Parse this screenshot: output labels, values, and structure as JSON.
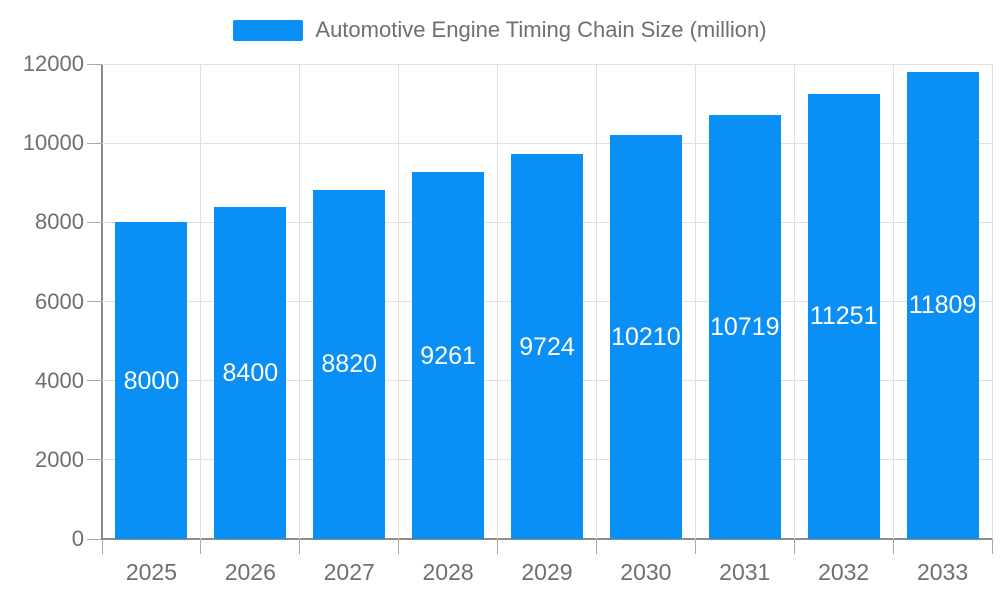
{
  "legend": {
    "label": "Automotive Engine Timing Chain Size (million)"
  },
  "chart_data": {
    "type": "bar",
    "title": "",
    "series_name": "Automotive Engine Timing Chain Size (million)",
    "categories": [
      "2025",
      "2026",
      "2027",
      "2028",
      "2029",
      "2030",
      "2031",
      "2032",
      "2033"
    ],
    "values": [
      8000,
      8400,
      8820,
      9261,
      9724,
      10210,
      10719,
      11251,
      11809
    ],
    "bar_value_labels_visible": true,
    "xlabel": "",
    "ylabel": "",
    "ylim": [
      0,
      12000
    ],
    "yticks": [
      0,
      2000,
      4000,
      6000,
      8000,
      10000,
      12000
    ],
    "grid": true,
    "legend_position": "top",
    "colors": {
      "bar": "#0a8ff7",
      "bar_label": "#ffffff",
      "axis_line": "#8c8c8c",
      "gridline": "#e0e0e0",
      "tick": "#a8a8a8",
      "axis_text": "#6f6f6f"
    }
  }
}
